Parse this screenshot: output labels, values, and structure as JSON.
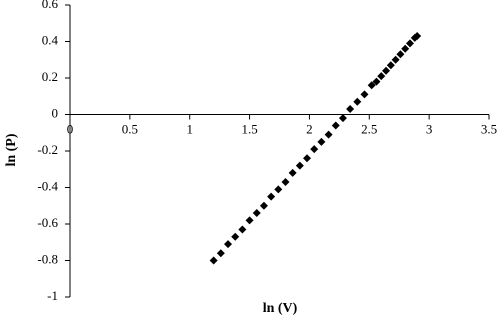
{
  "chart_data": {
    "type": "scatter",
    "x_label": "ln (V)",
    "y_label": "ln (P)",
    "color": "#000000",
    "grid": false,
    "xlim": [
      0,
      3.5
    ],
    "xticks": [
      0,
      0.5,
      1,
      1.5,
      2,
      2.5,
      3,
      3.5
    ],
    "ylim": [
      -1,
      0.6
    ],
    "yticks": [
      0.6,
      0.4,
      0.2,
      0,
      -0.2,
      -0.4,
      -0.6,
      -0.8,
      -1
    ],
    "x": [
      1.2,
      1.26,
      1.32,
      1.38,
      1.44,
      1.5,
      1.56,
      1.62,
      1.68,
      1.74,
      1.8,
      1.86,
      1.92,
      1.98,
      2.04,
      2.1,
      2.16,
      2.22,
      2.28,
      2.34,
      2.4,
      2.46,
      2.52,
      2.56,
      2.6,
      2.64,
      2.68,
      2.72,
      2.76,
      2.8,
      2.84,
      2.88,
      2.9
    ],
    "values": [
      -0.8,
      -0.76,
      -0.71,
      -0.67,
      -0.63,
      -0.58,
      -0.54,
      -0.5,
      -0.45,
      -0.41,
      -0.37,
      -0.32,
      -0.28,
      -0.24,
      -0.19,
      -0.15,
      -0.11,
      -0.06,
      -0.02,
      0.03,
      0.07,
      0.11,
      0.16,
      0.18,
      0.21,
      0.24,
      0.27,
      0.3,
      0.33,
      0.36,
      0.39,
      0.42,
      0.43
    ]
  }
}
